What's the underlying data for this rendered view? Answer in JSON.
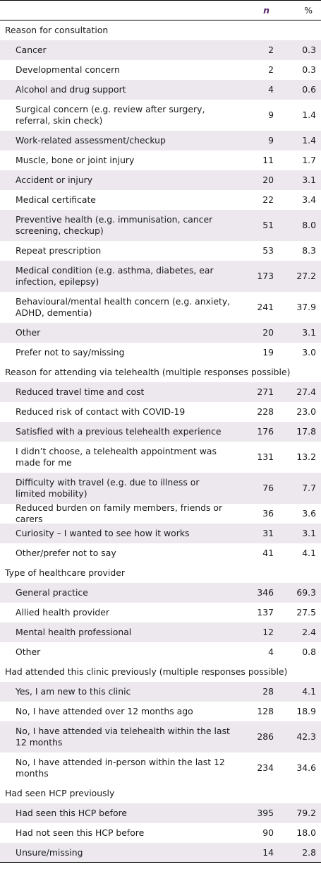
{
  "header": {
    "col1": "",
    "col2": "n",
    "col3": "%"
  },
  "sections": [
    {
      "title": "Reason for consultation",
      "rows": [
        {
          "label": "Cancer",
          "n": "2",
          "pct": "0.3"
        },
        {
          "label": "Developmental concern",
          "n": "2",
          "pct": "0.3"
        },
        {
          "label": "Alcohol and drug support",
          "n": "4",
          "pct": "0.6"
        },
        {
          "label": "Surgical concern (e.g. review after surgery, referral, skin check)",
          "n": "9",
          "pct": "1.4"
        },
        {
          "label": "Work-related assessment/checkup",
          "n": "9",
          "pct": "1.4"
        },
        {
          "label": "Muscle, bone or joint injury",
          "n": "11",
          "pct": "1.7"
        },
        {
          "label": "Accident or injury",
          "n": "20",
          "pct": "3.1"
        },
        {
          "label": "Medical certificate",
          "n": "22",
          "pct": "3.4"
        },
        {
          "label": "Preventive health (e.g. immunisation, cancer screening, checkup)",
          "n": "51",
          "pct": "8.0"
        },
        {
          "label": "Repeat prescription",
          "n": "53",
          "pct": "8.3"
        },
        {
          "label": "Medical condition (e.g. asthma, diabetes, ear infection, epilepsy)",
          "n": "173",
          "pct": "27.2"
        },
        {
          "label": "Behavioural/mental health concern (e.g. anxiety, ADHD, dementia)",
          "n": "241",
          "pct": "37.9"
        },
        {
          "label": "Other",
          "n": "20",
          "pct": "3.1"
        },
        {
          "label": "Prefer not to say/missing",
          "n": "19",
          "pct": "3.0"
        }
      ]
    },
    {
      "title": "Reason for attending via telehealth (multiple responses possible)",
      "rows": [
        {
          "label": "Reduced travel time and cost",
          "n": "271",
          "pct": "27.4"
        },
        {
          "label": "Reduced risk of contact with COVID-19",
          "n": "228",
          "pct": "23.0"
        },
        {
          "label": "Satisfied with a previous telehealth experience",
          "n": "176",
          "pct": "17.8"
        },
        {
          "label": "I didn’t choose, a telehealth appointment was made for me",
          "n": "131",
          "pct": "13.2"
        },
        {
          "label": "Difficulty with travel (e.g. due to illness or limited mobility)",
          "n": "76",
          "pct": "7.7"
        },
        {
          "label": "Reduced burden on family members, friends or carers",
          "n": "36",
          "pct": "3.6"
        },
        {
          "label": "Curiosity – I wanted to see how it works",
          "n": "31",
          "pct": "3.1"
        },
        {
          "label": "Other/prefer not to say",
          "n": "41",
          "pct": "4.1"
        }
      ]
    },
    {
      "title": "Type of healthcare provider",
      "rows": [
        {
          "label": "General practice",
          "n": "346",
          "pct": "69.3"
        },
        {
          "label": "Allied health provider",
          "n": "137",
          "pct": "27.5"
        },
        {
          "label": "Mental health professional",
          "n": "12",
          "pct": "2.4"
        },
        {
          "label": "Other",
          "n": "4",
          "pct": "0.8"
        }
      ]
    },
    {
      "title": "Had attended this clinic previously (multiple responses possible)",
      "rows": [
        {
          "label": "Yes, I am new to this clinic",
          "n": "28",
          "pct": "4.1"
        },
        {
          "label": "No, I have attended over 12 months ago",
          "n": "128",
          "pct": "18.9"
        },
        {
          "label": "No, I have attended via telehealth within the last 12 months",
          "n": "286",
          "pct": "42.3"
        },
        {
          "label": "No, I have attended in-person within the last 12 months",
          "n": "234",
          "pct": "34.6"
        }
      ]
    },
    {
      "title": "Had seen HCP previously",
      "rows": [
        {
          "label": "Had seen this HCP before",
          "n": "395",
          "pct": "79.2"
        },
        {
          "label": "Had not seen this HCP before",
          "n": "90",
          "pct": "18.0"
        },
        {
          "label": "Unsure/missing",
          "n": "14",
          "pct": "2.8"
        }
      ]
    }
  ]
}
